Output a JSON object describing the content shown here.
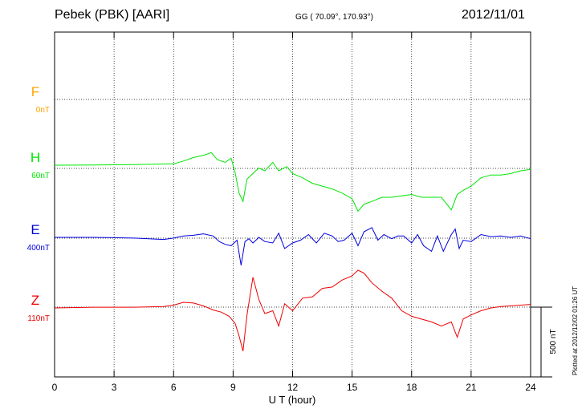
{
  "header": {
    "station": "Pebek (PBK)  [AARI]",
    "coords": "GG ( 70.09°, 170.93°)",
    "date": "2012/11/01"
  },
  "plotted_note": "Plotted at 2012/12/02 01:26 UT",
  "scale_label": "500 nT",
  "colors": {
    "F": "#ffa500",
    "H": "#00e600",
    "E": "#0000dd",
    "Z": "#ee0000",
    "grid": "#000000"
  },
  "chart_data": {
    "type": "line",
    "xlabel": "U T (hour)",
    "xlim": [
      0,
      24
    ],
    "xticks": [
      "0",
      "3",
      "6",
      "9",
      "12",
      "15",
      "18",
      "21",
      "24"
    ],
    "series": [
      {
        "name": "F",
        "offset_label": "0nT",
        "x": [],
        "values": []
      },
      {
        "name": "H",
        "offset_label": "60nT",
        "x": [
          0,
          2,
          4,
          6,
          6.5,
          7,
          7.5,
          7.9,
          8.2,
          8.6,
          8.9,
          9.1,
          9.3,
          9.5,
          9.7,
          10,
          10.3,
          10.6,
          11,
          11.3,
          11.7,
          12,
          12.5,
          13,
          13.5,
          14,
          14.5,
          15,
          15.3,
          15.6,
          16,
          16.5,
          17,
          17.5,
          18,
          18.5,
          19,
          19.5,
          20,
          20.3,
          20.6,
          21,
          21.5,
          22,
          22.5,
          23,
          23.5,
          24
        ],
        "values": [
          0,
          2,
          4,
          10,
          30,
          55,
          70,
          90,
          40,
          20,
          50,
          -50,
          -200,
          -260,
          -100,
          -60,
          -20,
          -40,
          20,
          -40,
          -10,
          -60,
          -90,
          -130,
          -150,
          -170,
          -200,
          -240,
          -330,
          -280,
          -260,
          -230,
          -230,
          -220,
          -210,
          -230,
          -230,
          -230,
          -320,
          -210,
          -180,
          -150,
          -90,
          -70,
          -70,
          -60,
          -40,
          -30
        ]
      },
      {
        "name": "E",
        "offset_label": "400nT",
        "x": [
          0,
          2,
          4,
          5.5,
          6,
          6.5,
          7,
          7.5,
          8,
          8.3,
          8.6,
          8.9,
          9.2,
          9.4,
          9.6,
          9.8,
          10,
          10.3,
          10.6,
          11,
          11.3,
          11.6,
          12,
          12.4,
          12.8,
          13.2,
          13.6,
          14,
          14.3,
          14.6,
          15,
          15.3,
          15.6,
          16,
          16.3,
          16.6,
          17,
          17.3,
          17.6,
          18,
          18.3,
          18.6,
          19,
          19.3,
          19.6,
          20,
          20.2,
          20.4,
          20.6,
          21,
          21.5,
          22,
          22.5,
          23,
          23.5,
          24
        ],
        "values": [
          0,
          0,
          -5,
          -15,
          -5,
          10,
          15,
          25,
          10,
          -30,
          -50,
          -60,
          -20,
          -200,
          -30,
          -10,
          -40,
          0,
          -30,
          -40,
          30,
          -80,
          -40,
          -20,
          20,
          -40,
          30,
          10,
          -30,
          -20,
          30,
          -60,
          40,
          70,
          -20,
          20,
          -10,
          10,
          10,
          -40,
          20,
          -60,
          -100,
          10,
          -100,
          20,
          60,
          -80,
          -20,
          -30,
          20,
          5,
          10,
          0,
          10,
          -10
        ]
      },
      {
        "name": "Z",
        "offset_label": "110nT",
        "x": [
          0,
          2,
          4,
          5.5,
          6,
          6.5,
          7,
          7.5,
          8,
          8.4,
          8.8,
          9.1,
          9.3,
          9.5,
          9.7,
          10,
          10.3,
          10.6,
          11,
          11.3,
          11.6,
          12,
          12.5,
          13,
          13.5,
          14,
          14.5,
          15,
          15.3,
          15.6,
          16,
          16.5,
          17,
          17.5,
          18,
          18.5,
          19,
          19.5,
          20,
          20.3,
          20.6,
          21,
          21.5,
          22,
          22.5,
          23,
          23.5,
          24
        ],
        "values": [
          0,
          5,
          5,
          10,
          20,
          40,
          35,
          15,
          -15,
          -30,
          -60,
          -110,
          -200,
          -310,
          -50,
          220,
          60,
          -40,
          -20,
          -130,
          30,
          -20,
          70,
          80,
          140,
          150,
          200,
          230,
          270,
          250,
          180,
          120,
          70,
          -20,
          -60,
          -80,
          -100,
          -130,
          -100,
          -210,
          -80,
          -50,
          -20,
          0,
          10,
          15,
          20,
          25
        ]
      }
    ]
  }
}
